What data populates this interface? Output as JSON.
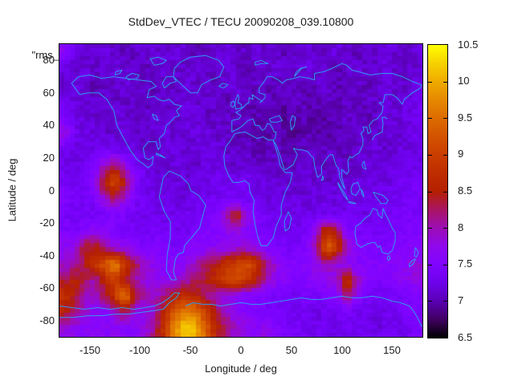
{
  "title": "StdDev_VTEC / TECU 20090208_039.10800",
  "legend_key_label": "\"rms_",
  "axes": {
    "x": {
      "label": "Longitude / deg",
      "range": [
        -180,
        180
      ],
      "tick_labels": [
        "-150",
        "-100",
        "-50",
        "0",
        "50",
        "100",
        "150"
      ]
    },
    "y": {
      "label": "Latitude / deg",
      "range": [
        -90,
        90
      ],
      "tick_labels": [
        "80",
        "60",
        "40",
        "20",
        "0",
        "-20",
        "-40",
        "-60",
        "-80"
      ]
    }
  },
  "colorbar": {
    "range": [
      6.5,
      10.5
    ],
    "tick_labels": [
      "6.5",
      "7",
      "7.5",
      "8",
      "8.5",
      "9",
      "9.5",
      "10",
      "10.5"
    ],
    "palette_description": "gnuplot default pm3d (rgbformulae 7,5,15): black - violet - dark red - orange - yellow",
    "bottom_color": "#000000",
    "mid_color": "#8004ff",
    "top_color": "#ffff00"
  },
  "map": {
    "coastline_color": "#2f9bf0"
  },
  "chart_data": {
    "type": "heatmap",
    "title": "StdDev_VTEC / TECU 20090208_039.10800",
    "xlabel": "Longitude / deg",
    "ylabel": "Latitude / deg",
    "xlim": [
      -180,
      180
    ],
    "ylim": [
      -90,
      90
    ],
    "zlim": [
      6.5,
      10.5
    ],
    "grid": false,
    "legend_position": "top-left-overlapping",
    "resolution_deg": 10,
    "lon_centers": [
      -175,
      -165,
      -155,
      -145,
      -135,
      -125,
      -115,
      -105,
      -95,
      -85,
      -75,
      -65,
      -55,
      -45,
      -35,
      -25,
      -15,
      -5,
      5,
      15,
      25,
      35,
      45,
      55,
      65,
      75,
      85,
      95,
      105,
      115,
      125,
      135,
      145,
      155,
      165,
      175
    ],
    "lat_centers": [
      85,
      75,
      65,
      55,
      45,
      35,
      25,
      15,
      5,
      -5,
      -15,
      -25,
      -35,
      -45,
      -55,
      -65,
      -75,
      -85
    ],
    "values_tecu": [
      [
        7.7,
        7.2,
        7.1,
        7.1,
        7.2,
        7.1,
        7.0,
        7.1,
        7.2,
        7.1,
        7.1,
        7.2,
        7.1,
        7.0,
        7.1,
        7.1,
        7.2,
        7.1,
        7.1,
        7.2,
        7.1,
        7.1,
        7.0,
        7.1,
        7.2,
        7.1,
        7.1,
        7.2,
        7.1,
        7.0,
        7.1,
        7.1,
        7.2,
        7.1,
        7.1,
        7.2
      ],
      [
        7.2,
        7.1,
        7.2,
        7.1,
        7.1,
        7.2,
        7.1,
        7.1,
        7.0,
        7.1,
        7.2,
        7.1,
        7.1,
        7.2,
        7.1,
        7.1,
        7.2,
        7.1,
        7.0,
        7.1,
        7.1,
        7.2,
        7.1,
        7.1,
        7.2,
        7.1,
        7.1,
        7.0,
        7.1,
        7.2,
        7.1,
        7.1,
        7.2,
        7.1,
        7.1,
        7.1
      ],
      [
        7.1,
        7.2,
        7.1,
        7.0,
        7.1,
        7.1,
        7.2,
        7.1,
        7.1,
        7.0,
        7.1,
        7.1,
        7.2,
        7.1,
        7.1,
        7.0,
        7.1,
        7.2,
        7.1,
        7.1,
        7.0,
        7.0,
        7.1,
        7.1,
        7.0,
        7.1,
        7.1,
        7.0,
        7.1,
        7.1,
        7.0,
        7.1,
        7.2,
        7.1,
        7.1,
        7.2
      ],
      [
        7.3,
        7.2,
        7.1,
        7.1,
        7.2,
        7.1,
        7.1,
        7.1,
        7.0,
        7.1,
        7.1,
        7.1,
        7.2,
        7.1,
        7.1,
        7.1,
        7.0,
        7.1,
        7.0,
        7.0,
        7.1,
        7.0,
        7.0,
        7.1,
        7.0,
        7.0,
        7.1,
        7.0,
        7.1,
        7.0,
        7.1,
        7.1,
        7.2,
        7.1,
        7.2,
        7.3
      ],
      [
        7.4,
        7.2,
        7.2,
        7.1,
        7.1,
        7.2,
        7.1,
        7.1,
        7.1,
        7.2,
        7.1,
        7.1,
        7.2,
        7.2,
        7.1,
        7.1,
        7.1,
        7.0,
        7.1,
        7.0,
        7.0,
        7.0,
        6.9,
        7.0,
        7.0,
        6.9,
        7.0,
        7.0,
        7.1,
        7.1,
        7.0,
        7.1,
        7.1,
        7.2,
        7.2,
        7.3
      ],
      [
        7.9,
        7.3,
        7.2,
        7.2,
        7.1,
        7.1,
        7.2,
        7.1,
        7.1,
        7.1,
        7.2,
        7.1,
        7.1,
        7.2,
        7.2,
        7.1,
        7.1,
        7.0,
        7.0,
        7.0,
        6.9,
        7.0,
        7.0,
        6.9,
        7.0,
        7.0,
        6.9,
        7.0,
        7.0,
        7.1,
        7.1,
        7.1,
        7.2,
        7.1,
        7.2,
        7.3
      ],
      [
        7.3,
        7.2,
        7.2,
        7.3,
        7.3,
        7.3,
        7.2,
        7.2,
        7.1,
        7.1,
        7.2,
        7.2,
        7.1,
        7.2,
        7.2,
        7.2,
        7.1,
        7.1,
        7.1,
        7.0,
        7.0,
        7.1,
        7.0,
        7.0,
        7.1,
        7.0,
        7.1,
        7.1,
        7.0,
        7.1,
        7.1,
        7.2,
        7.1,
        7.2,
        7.2,
        7.2
      ],
      [
        7.3,
        7.2,
        7.3,
        7.5,
        8.0,
        8.3,
        7.8,
        7.4,
        7.2,
        7.2,
        7.1,
        7.2,
        7.2,
        7.1,
        7.2,
        7.2,
        7.2,
        7.1,
        7.2,
        7.1,
        7.1,
        7.1,
        7.0,
        7.1,
        7.1,
        7.1,
        7.0,
        7.1,
        7.1,
        7.1,
        7.2,
        7.1,
        7.2,
        7.2,
        7.3,
        7.2
      ],
      [
        7.4,
        7.3,
        7.4,
        7.8,
        8.6,
        9.2,
        8.4,
        7.6,
        7.3,
        7.2,
        7.2,
        7.2,
        7.1,
        7.2,
        7.2,
        7.3,
        7.3,
        7.3,
        7.3,
        7.2,
        7.2,
        7.2,
        7.1,
        7.1,
        7.2,
        7.1,
        7.1,
        7.2,
        7.1,
        7.2,
        7.2,
        7.2,
        7.2,
        7.3,
        7.3,
        7.4
      ],
      [
        7.5,
        7.4,
        7.3,
        7.5,
        7.9,
        8.2,
        7.8,
        7.4,
        7.3,
        7.2,
        7.3,
        7.2,
        7.2,
        7.3,
        7.3,
        7.3,
        7.4,
        7.4,
        7.3,
        7.3,
        7.2,
        7.2,
        7.2,
        7.2,
        7.1,
        7.2,
        7.2,
        7.2,
        7.2,
        7.2,
        7.3,
        7.2,
        7.3,
        7.3,
        7.4,
        7.4
      ],
      [
        7.4,
        7.3,
        7.4,
        7.3,
        7.4,
        7.5,
        7.4,
        7.3,
        7.3,
        7.3,
        7.2,
        7.3,
        7.3,
        7.3,
        7.4,
        7.6,
        7.9,
        8.6,
        7.9,
        7.5,
        7.3,
        7.3,
        7.2,
        7.2,
        7.3,
        7.2,
        7.3,
        7.3,
        7.3,
        7.3,
        7.2,
        7.3,
        7.3,
        7.4,
        7.4,
        7.4
      ],
      [
        7.5,
        7.4,
        7.6,
        7.7,
        7.6,
        7.5,
        7.4,
        7.4,
        7.3,
        7.4,
        7.4,
        7.3,
        7.3,
        7.4,
        7.5,
        7.5,
        7.7,
        7.8,
        7.6,
        7.4,
        7.4,
        7.3,
        7.3,
        7.3,
        7.4,
        7.8,
        8.8,
        8.3,
        7.6,
        7.4,
        7.4,
        7.3,
        7.4,
        7.4,
        7.5,
        7.5
      ],
      [
        7.7,
        7.7,
        8.4,
        8.5,
        8.1,
        7.8,
        7.7,
        7.6,
        7.5,
        7.5,
        7.4,
        7.4,
        7.5,
        7.6,
        7.6,
        7.7,
        7.7,
        7.8,
        7.8,
        7.7,
        7.5,
        7.4,
        7.4,
        7.4,
        7.5,
        8.0,
        9.4,
        8.9,
        7.9,
        7.6,
        7.5,
        7.4,
        7.5,
        7.5,
        7.6,
        7.6
      ],
      [
        7.9,
        8.0,
        8.4,
        8.8,
        9.3,
        9.8,
        8.9,
        8.3,
        7.9,
        7.7,
        7.6,
        7.6,
        7.7,
        8.0,
        8.2,
        8.5,
        8.8,
        9.0,
        9.2,
        8.8,
        8.2,
        7.8,
        7.6,
        7.5,
        7.6,
        7.8,
        8.0,
        7.8,
        7.7,
        7.6,
        7.6,
        7.5,
        7.6,
        7.6,
        7.7,
        7.8
      ],
      [
        8.3,
        8.6,
        8.3,
        8.0,
        8.6,
        9.0,
        8.4,
        8.1,
        7.8,
        7.7,
        7.7,
        7.8,
        8.0,
        8.2,
        8.4,
        8.7,
        9.0,
        9.2,
        9.0,
        8.5,
        8.0,
        7.7,
        7.6,
        7.5,
        7.6,
        7.6,
        7.7,
        7.8,
        8.9,
        7.9,
        7.6,
        7.5,
        7.5,
        7.6,
        7.7,
        7.8
      ],
      [
        8.8,
        8.4,
        8.0,
        7.9,
        8.3,
        8.9,
        9.7,
        8.4,
        8.0,
        7.9,
        8.2,
        8.6,
        8.8,
        8.6,
        8.2,
        7.9,
        7.7,
        7.6,
        7.5,
        7.5,
        7.4,
        7.4,
        7.4,
        7.3,
        7.4,
        7.4,
        7.5,
        7.6,
        8.3,
        7.7,
        7.4,
        7.3,
        7.3,
        7.4,
        7.4,
        7.5
      ],
      [
        8.5,
        8.2,
        7.9,
        7.7,
        7.6,
        7.9,
        8.3,
        7.7,
        7.8,
        8.0,
        8.8,
        9.4,
        9.8,
        9.6,
        9.0,
        8.4,
        8.0,
        7.7,
        7.6,
        7.5,
        7.4,
        7.4,
        7.3,
        7.3,
        7.3,
        7.2,
        7.3,
        7.3,
        7.4,
        7.3,
        7.3,
        7.2,
        7.3,
        7.3,
        7.4,
        7.4
      ],
      [
        7.8,
        7.7,
        7.6,
        7.7,
        7.6,
        7.7,
        7.6,
        7.6,
        7.8,
        8.2,
        8.9,
        9.8,
        10.3,
        10.0,
        9.4,
        8.6,
        8.2,
        7.9,
        7.8,
        7.6,
        7.8,
        7.5,
        7.4,
        7.4,
        7.3,
        7.3,
        7.3,
        7.2,
        7.3,
        7.3,
        7.3,
        7.2,
        7.3,
        7.3,
        7.3,
        7.4
      ]
    ]
  }
}
